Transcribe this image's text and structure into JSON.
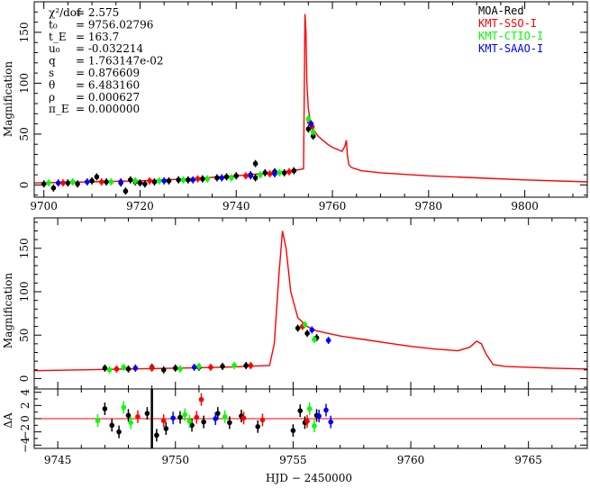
{
  "chart_data": [
    {
      "panel": "top",
      "type": "line",
      "xlim": [
        9698,
        9813
      ],
      "ylim": [
        -12,
        180
      ],
      "ylabel": "Magnification",
      "xticks": [
        9700,
        9720,
        9740,
        9760,
        9780,
        9800
      ],
      "yticks": [
        0,
        50,
        100,
        150
      ],
      "parameters": [
        {
          "name": "χ²/dof",
          "value": "= 2.575"
        },
        {
          "name": "t₀",
          "value": "= 9756.02796"
        },
        {
          "name": "t_E",
          "value": "= 163.7"
        },
        {
          "name": "u₀",
          "value": "= -0.032214"
        },
        {
          "name": "q",
          "value": "= 1.763147e-02"
        },
        {
          "name": "s",
          "value": "= 0.876609"
        },
        {
          "name": "θ",
          "value": "= 6.483160"
        },
        {
          "name": "ρ",
          "value": "= 0.000627"
        },
        {
          "name": "π_E",
          "value": "= 0.000000"
        }
      ],
      "legend": [
        {
          "label": "MOA-Red",
          "color": "#000000"
        },
        {
          "label": "KMT-SSO-I",
          "color": "#ff0000"
        },
        {
          "label": "KMT-CTIO-I",
          "color": "#00ff00"
        },
        {
          "label": "KMT-SAAO-I",
          "color": "#0000ff"
        }
      ],
      "model": {
        "color": "#ff0000",
        "x": [
          9698,
          9710,
          9720,
          9730,
          9740,
          9745,
          9750,
          9753,
          9754,
          9754.3,
          9754.5,
          9754.7,
          9755,
          9755.5,
          9756,
          9757,
          9758,
          9759,
          9760,
          9761,
          9762,
          9762.6,
          9762.9,
          9763.1,
          9763.4,
          9764,
          9766,
          9770,
          9780,
          9790,
          9800,
          9813
        ],
        "y": [
          2,
          3,
          4,
          6,
          9,
          11,
          13,
          15,
          16,
          168,
          150,
          100,
          75,
          60,
          55,
          48,
          44,
          40,
          37,
          35,
          33,
          38,
          44,
          30,
          20,
          17,
          14,
          12,
          9,
          7,
          5,
          3
        ]
      },
      "observations": [
        {
          "name": "MOA-Red",
          "color": "#000000",
          "x": [
            9700,
            9702,
            9705,
            9707,
            9710,
            9711,
            9713,
            9716,
            9717,
            9718,
            9719,
            9720,
            9721,
            9723,
            9726,
            9728,
            9730,
            9733,
            9736,
            9738,
            9740,
            9743,
            9744,
            9744,
            9746,
            9748,
            9750,
            9752,
            9755,
            9755.5,
            9756
          ],
          "y": [
            1,
            -3,
            2,
            1,
            4,
            8,
            3,
            2,
            -6,
            5,
            3,
            2,
            1,
            3,
            4,
            5,
            5,
            6,
            7,
            8,
            9,
            10,
            7,
            21,
            12,
            13,
            12,
            14,
            55,
            60,
            48
          ]
        },
        {
          "name": "KMT-SSO-I",
          "color": "#ff0000",
          "x": [
            9704,
            9712,
            9722,
            9732,
            9742,
            9747,
            9751,
            9755.2,
            9755.8
          ],
          "y": [
            2,
            3,
            4,
            6,
            9,
            11,
            13,
            62,
            57
          ]
        },
        {
          "name": "KMT-CTIO-I",
          "color": "#00ff00",
          "x": [
            9701,
            9706,
            9714,
            9719,
            9724,
            9729,
            9734,
            9739,
            9745,
            9749,
            9755,
            9756
          ],
          "y": [
            2,
            3,
            3,
            4,
            4,
            5,
            6,
            7,
            10,
            12,
            65,
            52
          ]
        },
        {
          "name": "KMT-SAAO-I",
          "color": "#0000ff",
          "x": [
            9703,
            9709,
            9716,
            9725,
            9731,
            9737,
            9743,
            9748,
            9755.6
          ],
          "y": [
            2,
            3,
            3,
            4,
            5,
            7,
            9,
            11,
            60
          ]
        }
      ]
    },
    {
      "panel": "middle",
      "type": "line",
      "xlim": [
        9744,
        9767.5
      ],
      "ylim": [
        -12,
        185
      ],
      "ylabel": "Magnification",
      "xticks": [
        9745,
        9750,
        9755,
        9760,
        9765
      ],
      "yticks": [
        0,
        50,
        100,
        150
      ],
      "model": {
        "color": "#ff0000",
        "x": [
          9744,
          9746,
          9748,
          9750,
          9752,
          9754,
          9754.2,
          9754.4,
          9754.55,
          9754.7,
          9754.9,
          9755.2,
          9755.6,
          9756,
          9757,
          9758,
          9759,
          9760,
          9761,
          9762,
          9762.5,
          9762.8,
          9763,
          9763.2,
          9763.5,
          9764,
          9766,
          9767.5
        ],
        "y": [
          9,
          10,
          11,
          12,
          13,
          15,
          40,
          120,
          170,
          150,
          100,
          70,
          60,
          55,
          49,
          45,
          41,
          37,
          34,
          32,
          36,
          43,
          40,
          28,
          16,
          14,
          12,
          11
        ]
      },
      "observations": [
        {
          "name": "MOA-Red",
          "color": "#000000",
          "x": [
            9747,
            9748,
            9749,
            9749.5,
            9750,
            9751,
            9752,
            9753,
            9755.2,
            9755.6,
            9756
          ],
          "y": [
            12,
            11,
            13,
            10,
            12,
            13,
            14,
            15,
            58,
            52,
            47
          ]
        },
        {
          "name": "KMT-SSO-I",
          "color": "#ff0000",
          "x": [
            9747.5,
            9749,
            9751.5,
            9753.2,
            9755.4
          ],
          "y": [
            11,
            12,
            13,
            15,
            60
          ]
        },
        {
          "name": "KMT-CTIO-I",
          "color": "#00ff00",
          "x": [
            9747.2,
            9747.8,
            9750.2,
            9751,
            9752.5,
            9755.5,
            9755.9
          ],
          "y": [
            10,
            13,
            11,
            14,
            15,
            62,
            45
          ]
        },
        {
          "name": "KMT-SAAO-I",
          "color": "#0000ff",
          "x": [
            9748.3,
            9750.8,
            9755.8,
            9756.5
          ],
          "y": [
            12,
            13,
            56,
            44
          ]
        }
      ]
    },
    {
      "panel": "bottom",
      "type": "scatter",
      "xlim": [
        9744,
        9767.5
      ],
      "ylim": [
        -4.5,
        4.5
      ],
      "ylabel": "ΔA",
      "xlabel": "HJD − 2450000",
      "xticks": [
        9745,
        9750,
        9755,
        9760,
        9765
      ],
      "yticks": [
        -4,
        -2,
        0,
        2,
        4
      ],
      "ytick_labels": [
        "−4",
        "−2",
        "0",
        "2",
        "4"
      ],
      "zero_line_color": "#ff0000",
      "residuals": [
        {
          "name": "MOA-Red",
          "color": "#000000",
          "x": [
            9747,
            9747.3,
            9747.6,
            9748,
            9748.8,
            9749.2,
            9749.6,
            9750.2,
            9750.7,
            9751.2,
            9751.8,
            9752.3,
            9752.8,
            9753.5,
            9755,
            9755.3,
            9755.5,
            9756
          ],
          "y": [
            1.5,
            -1.0,
            -2.0,
            0.5,
            0.8,
            -2.5,
            -1.5,
            0.2,
            -1.0,
            -0.5,
            0.8,
            -0.6,
            0.4,
            -1.2,
            -1.8,
            1.2,
            -0.6,
            0.5
          ]
        },
        {
          "name": "KMT-SSO-I",
          "color": "#ff0000",
          "x": [
            9748.4,
            9749.5,
            9750.9,
            9751.1,
            9752.9,
            9753.7,
            9755.6
          ],
          "y": [
            0.3,
            -0.3,
            0.2,
            2.9,
            0.1,
            -0.2,
            -0.4
          ]
        },
        {
          "name": "KMT-CTIO-I",
          "color": "#00ff00",
          "x": [
            9746.7,
            9747.8,
            9748.1,
            9750.4,
            9750.6,
            9752.1,
            9755.7,
            9755.9
          ],
          "y": [
            -0.3,
            1.7,
            -0.6,
            0.6,
            -0.4,
            0.3,
            1.5,
            -1.1
          ]
        },
        {
          "name": "KMT-SAAO-I",
          "color": "#0000ff",
          "x": [
            9749.9,
            9751.7,
            9756.1,
            9756.4,
            9756.6
          ],
          "y": [
            0.1,
            0.0,
            0.4,
            1.3,
            -0.5
          ]
        }
      ]
    }
  ]
}
